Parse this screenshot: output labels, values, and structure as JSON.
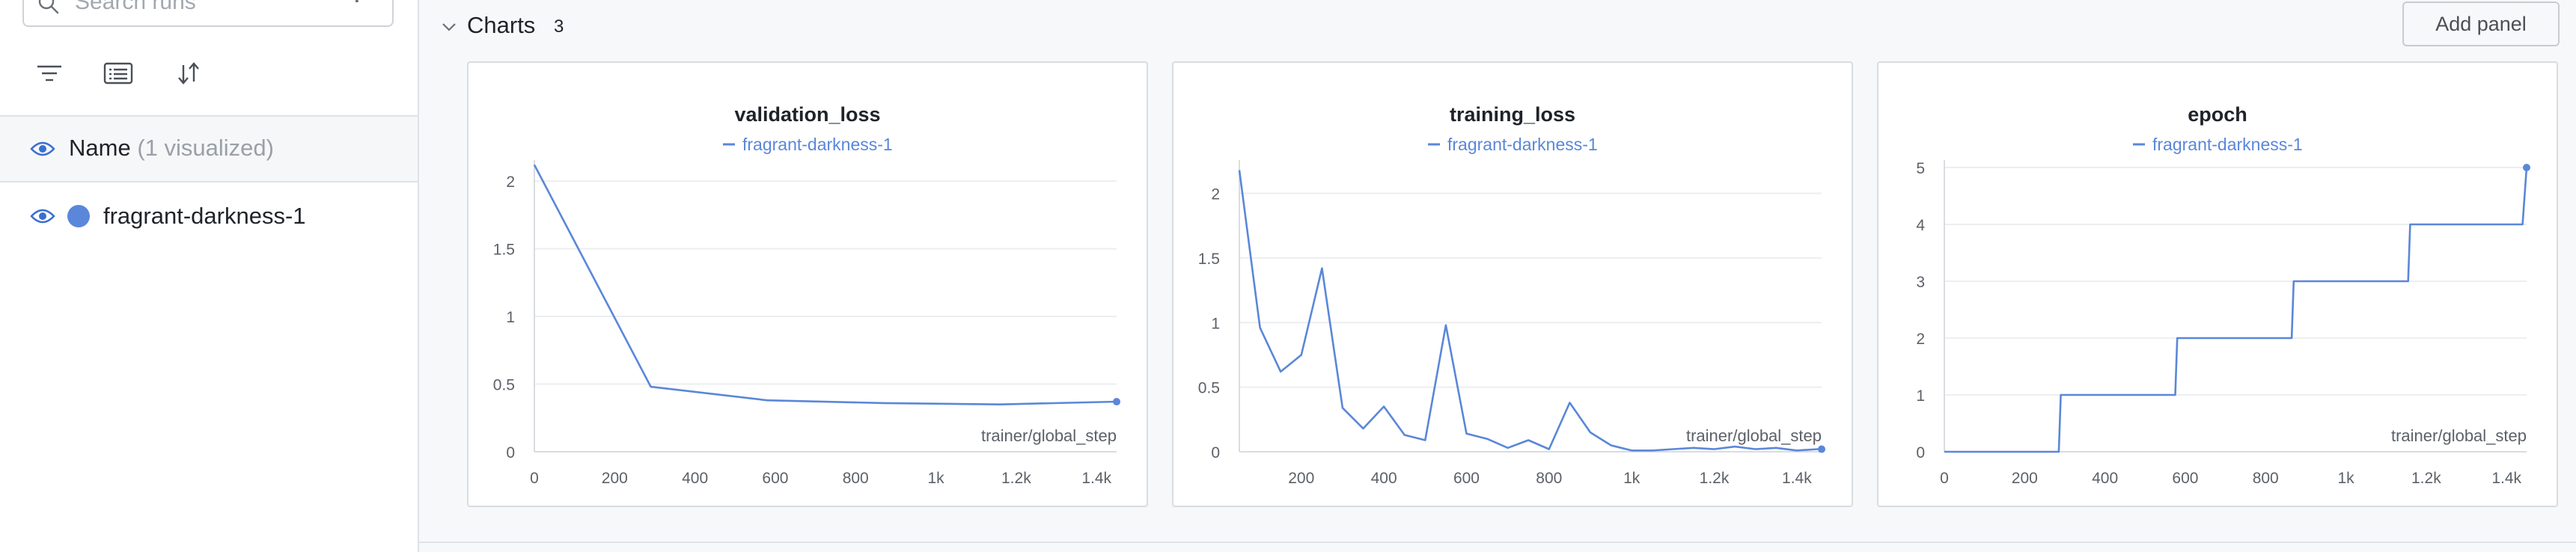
{
  "sidebar": {
    "search": {
      "placeholder": "Search runs",
      "regex_label": ".*"
    },
    "toolbar": {
      "icons": [
        "filter-icon",
        "list-icon",
        "sort-icon"
      ]
    },
    "header": {
      "label": "Name",
      "count": "(1 visualized)"
    },
    "runs": [
      {
        "name": "fragrant-darkness-1",
        "color": "#5a87d9"
      }
    ]
  },
  "main": {
    "section": {
      "title": "Charts",
      "count": "3"
    },
    "add_panel_label": "Add panel"
  },
  "charts": [
    {
      "title": "validation_loss",
      "legend": "fragrant-darkness-1",
      "xlabel": "trainer/global_step",
      "chart_data": {
        "type": "line",
        "title": "validation_loss",
        "xlabel": "trainer/global_step",
        "ylabel": "",
        "xlim": [
          0,
          1450
        ],
        "ylim": [
          0,
          2.1
        ],
        "x_ticks": [
          0,
          200,
          400,
          600,
          800,
          1000,
          1200,
          1400
        ],
        "x_tick_labels": [
          "0",
          "200",
          "400",
          "600",
          "800",
          "1k",
          "1.2k",
          "1.4k"
        ],
        "y_ticks": [
          0,
          0.5,
          1,
          1.5,
          2
        ],
        "y_tick_labels": [
          "0",
          "0.5",
          "1",
          "1.5",
          "2"
        ],
        "series": [
          {
            "name": "fragrant-darkness-1",
            "x": [
              0,
              290,
              580,
              870,
              1160,
              1450
            ],
            "y": [
              2.12,
              0.48,
              0.38,
              0.36,
              0.35,
              0.37
            ]
          }
        ]
      }
    },
    {
      "title": "training_loss",
      "legend": "fragrant-darkness-1",
      "xlabel": "trainer/global_step",
      "chart_data": {
        "type": "line",
        "title": "training_loss",
        "xlabel": "trainer/global_step",
        "ylabel": "",
        "xlim": [
          50,
          1460
        ],
        "ylim": [
          0,
          2.2
        ],
        "x_ticks": [
          200,
          400,
          600,
          800,
          1000,
          1200,
          1400
        ],
        "x_tick_labels": [
          "200",
          "400",
          "600",
          "800",
          "1k",
          "1.2k",
          "1.4k"
        ],
        "y_ticks": [
          0,
          0.5,
          1,
          1.5,
          2
        ],
        "y_tick_labels": [
          "0",
          "0.5",
          "1",
          "1.5",
          "2"
        ],
        "series": [
          {
            "name": "fragrant-darkness-1",
            "x": [
              50,
              100,
              150,
              200,
              250,
              300,
              350,
              400,
              450,
              500,
              550,
              600,
              650,
              700,
              750,
              800,
              850,
              900,
              950,
              1000,
              1050,
              1100,
              1150,
              1200,
              1250,
              1300,
              1350,
              1400,
              1450,
              1460
            ],
            "y": [
              2.18,
              0.96,
              0.62,
              0.75,
              1.42,
              0.34,
              0.18,
              0.35,
              0.13,
              0.09,
              0.98,
              0.14,
              0.1,
              0.03,
              0.09,
              0.02,
              0.38,
              0.15,
              0.05,
              0.01,
              0.01,
              0.02,
              0.03,
              0.02,
              0.04,
              0.02,
              0.03,
              0.01,
              0.02,
              0.02
            ]
          }
        ]
      }
    },
    {
      "title": "epoch",
      "legend": "fragrant-darkness-1",
      "xlabel": "trainer/global_step",
      "chart_data": {
        "type": "line",
        "title": "epoch",
        "xlabel": "trainer/global_step",
        "ylabel": "",
        "xlim": [
          0,
          1450
        ],
        "ylim": [
          0,
          5
        ],
        "x_ticks": [
          0,
          200,
          400,
          600,
          800,
          1000,
          1200,
          1400
        ],
        "x_tick_labels": [
          "0",
          "200",
          "400",
          "600",
          "800",
          "1k",
          "1.2k",
          "1.4k"
        ],
        "y_ticks": [
          0,
          1,
          2,
          3,
          4,
          5
        ],
        "y_tick_labels": [
          "0",
          "1",
          "2",
          "3",
          "4",
          "5"
        ],
        "series": [
          {
            "name": "fragrant-darkness-1",
            "x": [
              0,
              285,
              290,
              575,
              580,
              865,
              870,
              1155,
              1160,
              1440,
              1450
            ],
            "y": [
              0,
              0,
              1,
              1,
              2,
              2,
              3,
              3,
              4,
              4,
              5
            ]
          }
        ]
      }
    }
  ],
  "colors": {
    "series": "#5a87d9",
    "grid": "#eceef0",
    "axis_text": "#5c6168"
  }
}
